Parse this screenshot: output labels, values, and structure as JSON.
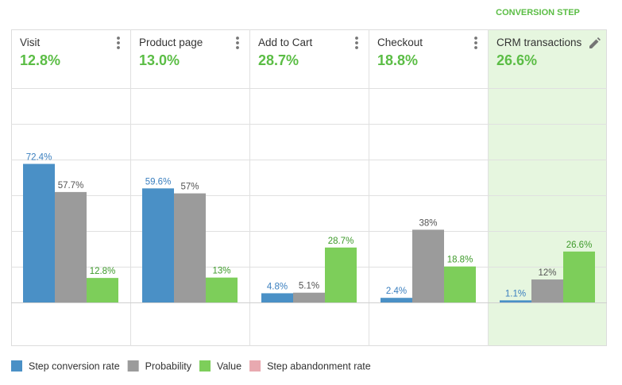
{
  "conversion_step_label": "CONVERSION STEP",
  "colors": {
    "step_conversion_rate": "#4a90c6",
    "probability": "#9b9b9b",
    "value": "#7dce5a",
    "step_abandonment_rate": "#e8a9b0",
    "highlight_bg": "#e6f6df",
    "accent_green": "#5bbd45",
    "label_blue": "#3a7fbf"
  },
  "columns": [
    {
      "title": "Visit",
      "value": "12.8%",
      "menu_icon": "more-vert-icon"
    },
    {
      "title": "Product page",
      "value": "13.0%",
      "menu_icon": "more-vert-icon"
    },
    {
      "title": "Add to Cart",
      "value": "28.7%",
      "menu_icon": "more-vert-icon"
    },
    {
      "title": "Checkout",
      "value": "18.8%",
      "menu_icon": "more-vert-icon"
    },
    {
      "title": "CRM transactions",
      "value": "26.6%",
      "menu_icon": "edit-pencil-icon",
      "highlighted": true
    }
  ],
  "chart_data": {
    "type": "bar",
    "categories": [
      "Visit",
      "Product page",
      "Add to Cart",
      "Checkout",
      "CRM transactions"
    ],
    "series": [
      {
        "name": "Step conversion rate",
        "values": [
          72.4,
          59.6,
          4.8,
          2.4,
          1.1
        ],
        "labels": [
          "72.4%",
          "59.6%",
          "4.8%",
          "2.4%",
          "1.1%"
        ]
      },
      {
        "name": "Probability",
        "values": [
          57.7,
          57,
          5.1,
          38,
          12
        ],
        "labels": [
          "57.7%",
          "57%",
          "5.1%",
          "38%",
          "12%"
        ]
      },
      {
        "name": "Value",
        "values": [
          12.8,
          13,
          28.7,
          18.8,
          26.6
        ],
        "labels": [
          "12.8%",
          "13%",
          "28.7%",
          "18.8%",
          "26.6%"
        ]
      }
    ],
    "ylim": [
      0,
      112
    ],
    "grid": true,
    "legend_position": "bottom-left"
  },
  "legend": [
    {
      "label": "Step conversion rate",
      "color_key": "step_conversion_rate"
    },
    {
      "label": "Probability",
      "color_key": "probability"
    },
    {
      "label": "Value",
      "color_key": "value"
    },
    {
      "label": "Step abandonment rate",
      "color_key": "step_abandonment_rate"
    }
  ]
}
